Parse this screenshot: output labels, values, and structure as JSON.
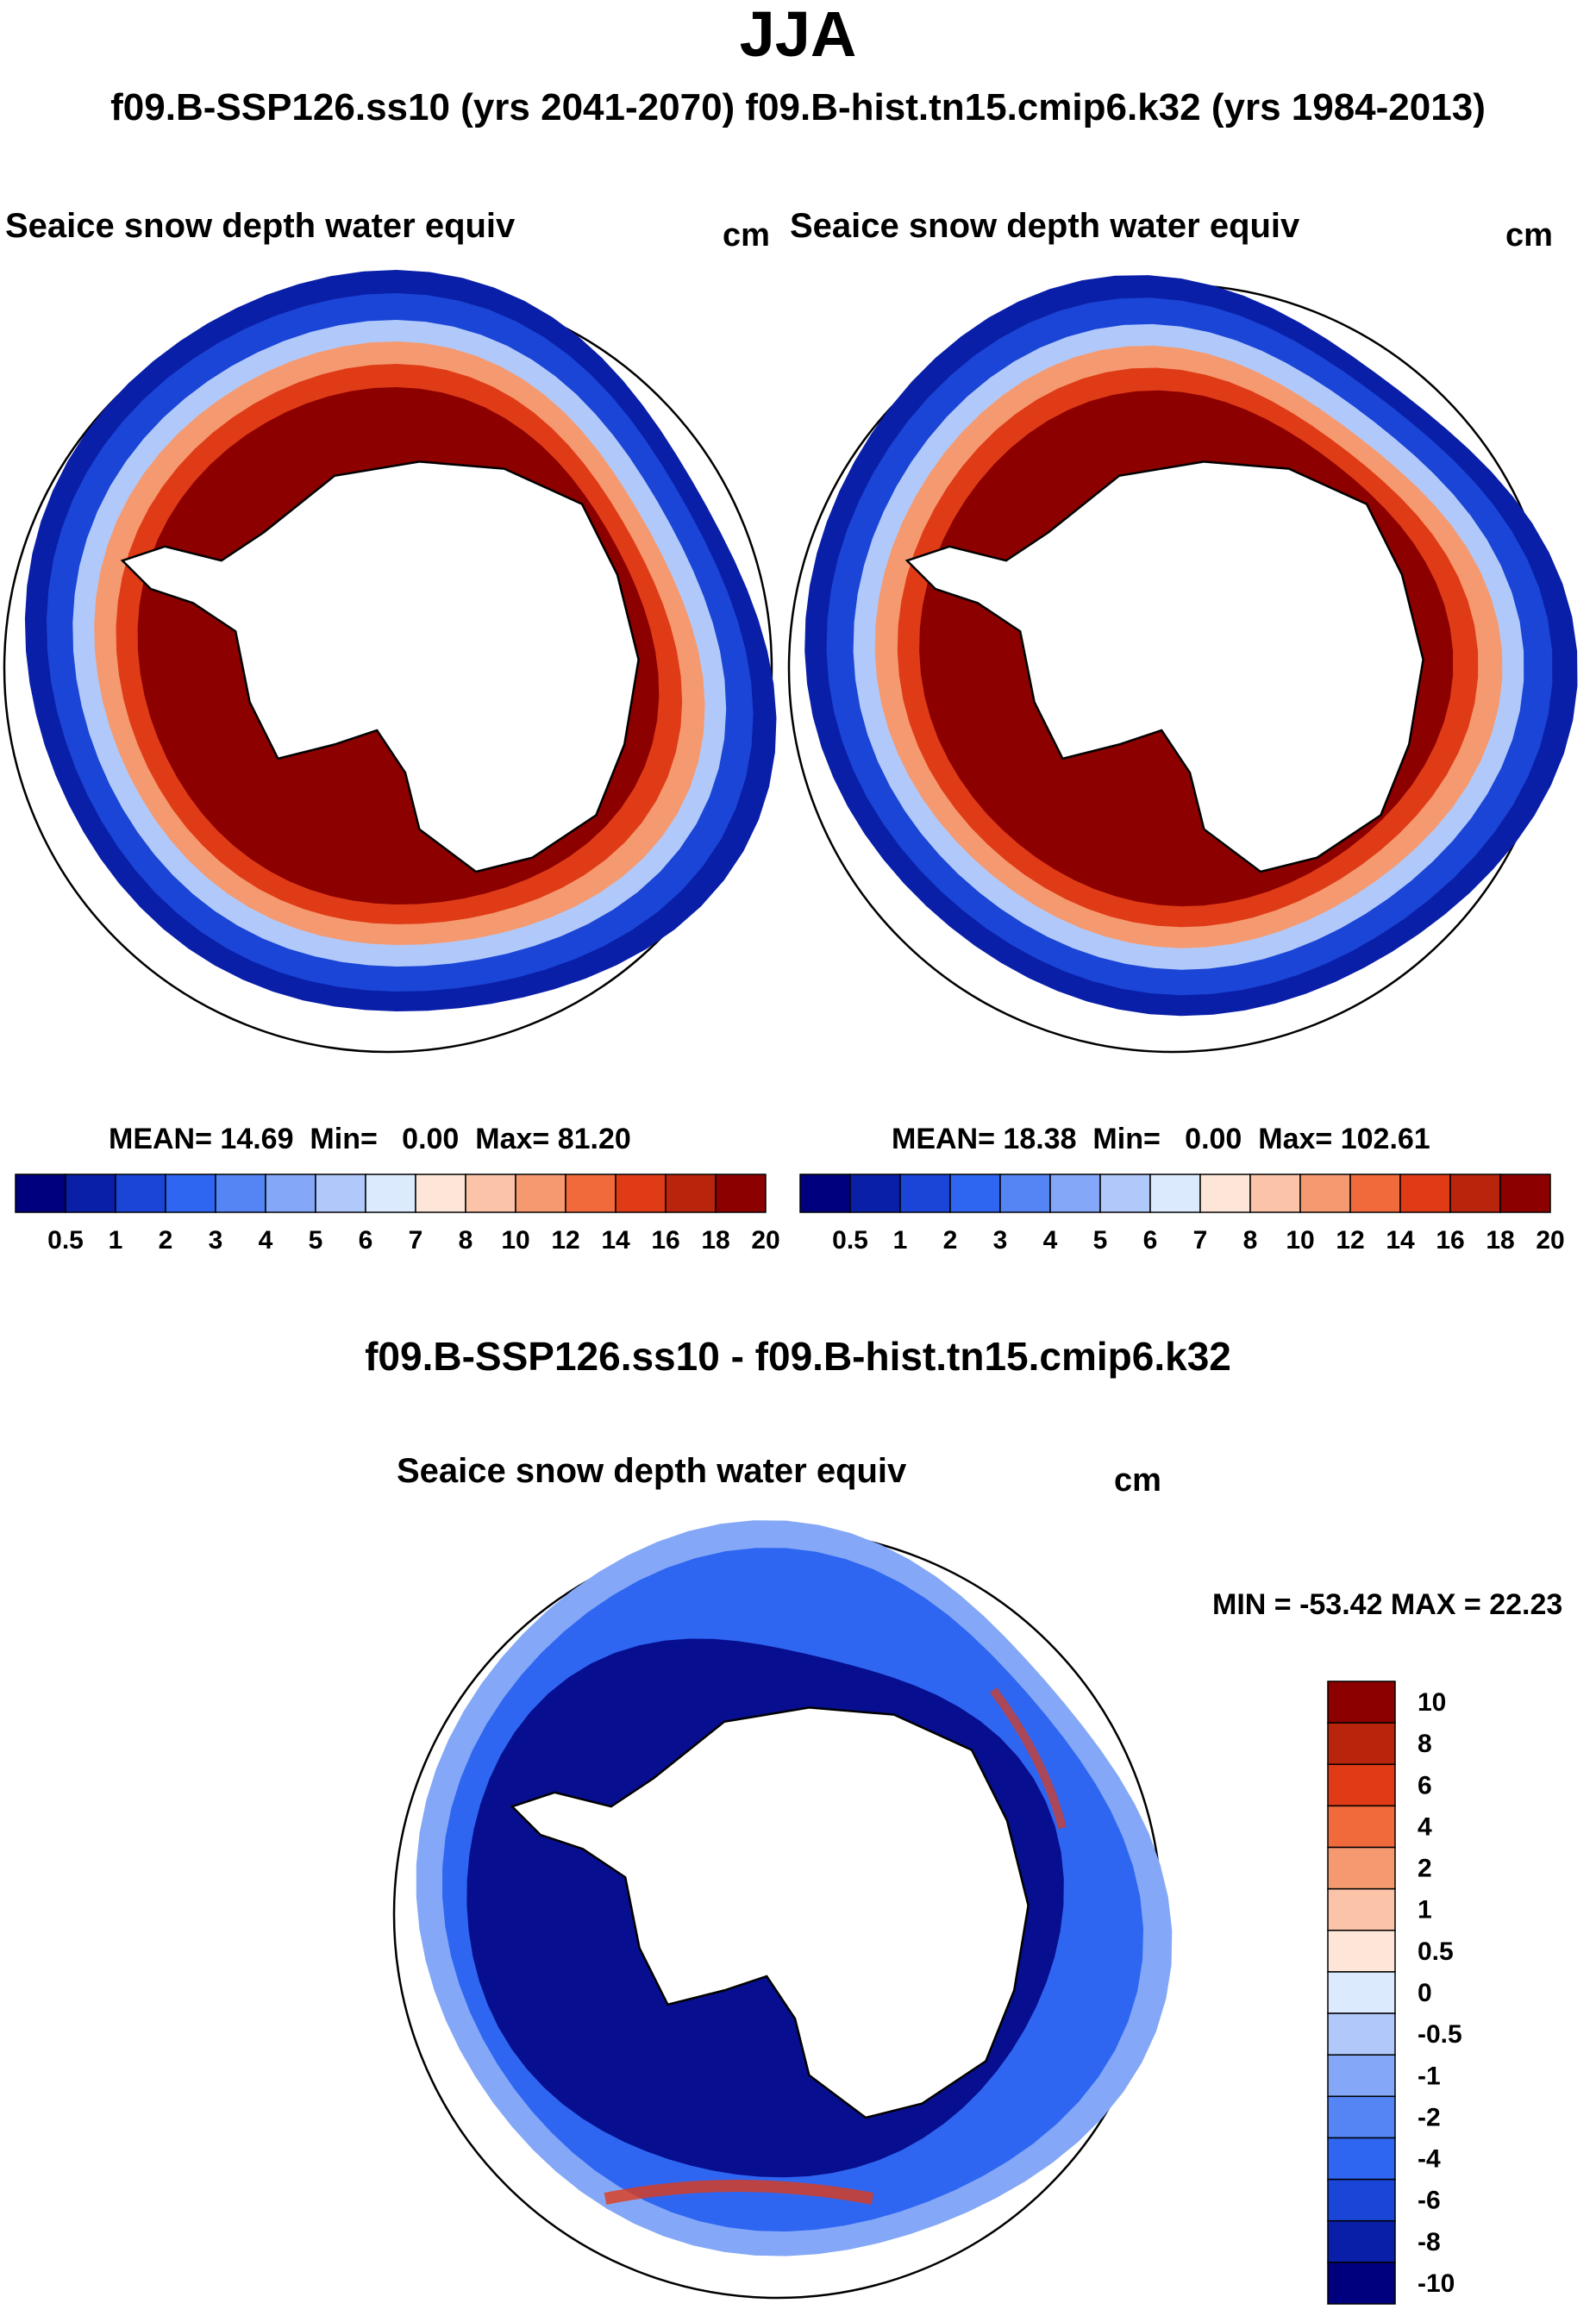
{
  "title": "JJA",
  "subtitle": "f09.B-SSP126.ss10 (yrs 2041-2070)  f09.B-hist.tn15.cmip6.k32 (yrs 1984-2013)",
  "panels": {
    "left": {
      "label": "Seaice snow depth water equiv",
      "units": "cm",
      "stats": {
        "mean_label": "MEAN=",
        "mean": "14.69",
        "min_label": "Min=",
        "min": "0.00",
        "max_label": "Max=",
        "max": "81.20"
      }
    },
    "right": {
      "label": "Seaice snow depth water equiv",
      "units": "cm",
      "stats": {
        "mean_label": "MEAN=",
        "mean": "18.38",
        "min_label": "Min=",
        "min": "0.00",
        "max_label": "Max=",
        "max": "102.61"
      }
    },
    "diff": {
      "header": "f09.B-SSP126.ss10 - f09.B-hist.tn15.cmip6.k32",
      "label": "Seaice snow depth water equiv",
      "units": "cm",
      "minmax": "MIN = -53.42 MAX =  22.23"
    }
  },
  "colorbar_abs": {
    "colors": [
      "#00007f",
      "#0a1fa8",
      "#1a45d6",
      "#2e66f2",
      "#5585f5",
      "#84a8f7",
      "#b1c9fa",
      "#dceafe",
      "#fde6d8",
      "#fbc3a8",
      "#f59a70",
      "#f06a3c",
      "#e03b17",
      "#b8240c",
      "#8c0000"
    ],
    "labels": [
      "0.5",
      "1",
      "2",
      "3",
      "4",
      "5",
      "6",
      "7",
      "8",
      "10",
      "12",
      "14",
      "16",
      "18",
      "20"
    ]
  },
  "colorbar_diff": {
    "colors": [
      "#8c0000",
      "#b8240c",
      "#e03b17",
      "#f06a3c",
      "#f59a70",
      "#fbc3a8",
      "#fde6d8",
      "#dceafe",
      "#b1c9fa",
      "#84a8f7",
      "#5585f5",
      "#2e66f2",
      "#1a45d6",
      "#0a1fa8",
      "#00007f"
    ],
    "labels": [
      "10",
      "8",
      "6",
      "4",
      "2",
      "1",
      "0.5",
      "0",
      "-0.5",
      "-1",
      "-2",
      "-4",
      "-6",
      "-8",
      "-10"
    ]
  },
  "map_colors": {
    "land": "#ffffff",
    "coast": "#000000",
    "rim": "#000000",
    "ice_high": "#8c0000",
    "ice_mid": "#e03b17",
    "ice_low": "#f59a70",
    "edge_blue": "#1a45d6",
    "edge_pale": "#b1c9fa",
    "edge_dark": "#0a1fa8",
    "diff_base": "#2e66f2",
    "diff_dark": "#00007f",
    "diff_pale": "#84a8f7",
    "diff_red": "#e03b17"
  }
}
